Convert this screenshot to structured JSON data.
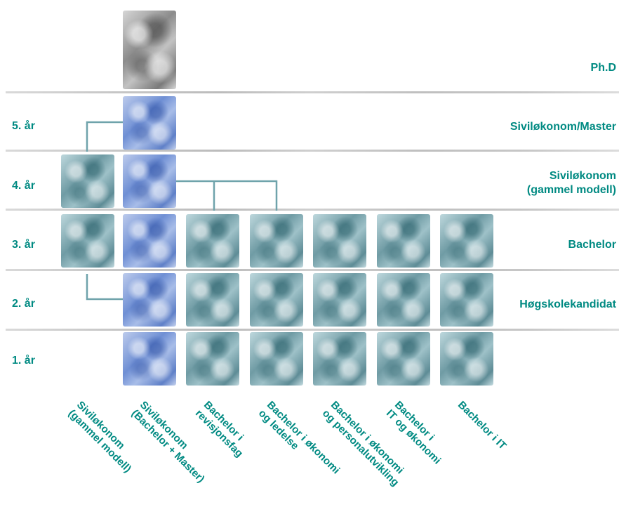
{
  "levels": {
    "phd": "Ph.D",
    "sivilokonom_master": "Siviløkonom/Master",
    "sivilokonom_gammel_line1": "Siviløkonom",
    "sivilokonom_gammel_line2": "(gammel modell)",
    "bachelor": "Bachelor",
    "hogskolekandidat": "Høgskolekandidat"
  },
  "years": {
    "y5": "5. år",
    "y4": "4. år",
    "y3": "3. år",
    "y2": "2. år",
    "y1": "1. år"
  },
  "programs": [
    {
      "line1": "Siviløkonom",
      "line2": "(gammel modell)"
    },
    {
      "line1": "Siviløkonom",
      "line2": "(Bachelor + Master)"
    },
    {
      "line1": "Bachelor i",
      "line2": "revisjonsfag"
    },
    {
      "line1": "Bachelor i økonomi",
      "line2": "og ledelse"
    },
    {
      "line1": "Bachelor i økonomi",
      "line2": "og personalutvikling"
    },
    {
      "line1": "Bachelor i",
      "line2": "IT og økonomi"
    },
    {
      "line1": "Bachelor i IT",
      "line2": ""
    }
  ],
  "colors": {
    "text_teal": "#008a82",
    "connector": "#6fa3ab",
    "block_teal": "#7fa9b1",
    "block_blue": "#7f9ddc",
    "block_gray": "#9a9a9a"
  }
}
